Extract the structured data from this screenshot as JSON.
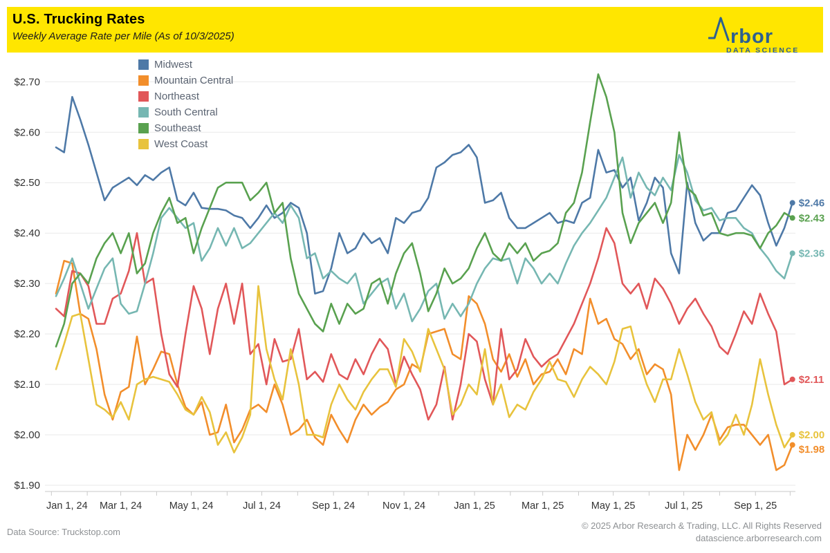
{
  "header": {
    "title": "U.S. Trucking Rates",
    "subtitle": "Weekly Average Rate per Mile (As of 10/3/2025)",
    "bar_color": "#FFE600",
    "logo": {
      "brand": "Arbor",
      "wordmark_suffix": "rbor",
      "tagline": "DATA SCIENCE",
      "color": "#2D6090"
    }
  },
  "footer": {
    "source": "Data Source: Truckstop.com",
    "copyright": "© 2025 Arbor Research & Trading, LLC. All Rights Reserved",
    "website": "datascience.arborresearch.com"
  },
  "chart_data": {
    "type": "line",
    "unit": "USD per mile, weekly average",
    "grid": "horizontal",
    "legend_position": "top-left",
    "y_axis": {
      "min": 1.9,
      "max": 2.7,
      "step": 0.1,
      "format": "$0.00"
    },
    "x_axis": {
      "start_date": "2024-01-05",
      "interval_days": 7,
      "points": 92,
      "tick_labels": [
        {
          "date": "2024-01-01",
          "label": "Jan 1, 24"
        },
        {
          "date": "2024-03-01",
          "label": "Mar 1, 24"
        },
        {
          "date": "2024-05-01",
          "label": "May 1, 24"
        },
        {
          "date": "2024-07-01",
          "label": "Jul 1, 24"
        },
        {
          "date": "2024-09-01",
          "label": "Sep 1, 24"
        },
        {
          "date": "2024-11-01",
          "label": "Nov 1, 24"
        },
        {
          "date": "2025-01-01",
          "label": "Jan 1, 25"
        },
        {
          "date": "2025-03-01",
          "label": "Mar 1, 25"
        },
        {
          "date": "2025-05-01",
          "label": "May 1, 25"
        },
        {
          "date": "2025-07-01",
          "label": "Jul 1, 25"
        },
        {
          "date": "2025-09-01",
          "label": "Sep 1, 25"
        }
      ]
    },
    "series": [
      {
        "name": "Midwest",
        "color": "#4E79A7",
        "end_label": "$2.46",
        "values": [
          2.57,
          2.56,
          2.67,
          2.625,
          2.575,
          2.52,
          2.465,
          2.49,
          2.5,
          2.51,
          2.495,
          2.515,
          2.505,
          2.52,
          2.53,
          2.465,
          2.455,
          2.48,
          2.45,
          2.448,
          2.448,
          2.445,
          2.435,
          2.43,
          2.41,
          2.43,
          2.455,
          2.43,
          2.44,
          2.46,
          2.45,
          2.4,
          2.28,
          2.285,
          2.33,
          2.4,
          2.36,
          2.37,
          2.4,
          2.38,
          2.39,
          2.36,
          2.43,
          2.42,
          2.44,
          2.445,
          2.47,
          2.53,
          2.54,
          2.555,
          2.56,
          2.575,
          2.55,
          2.46,
          2.465,
          2.48,
          2.43,
          2.41,
          2.41,
          2.42,
          2.43,
          2.44,
          2.42,
          2.425,
          2.42,
          2.46,
          2.47,
          2.565,
          2.52,
          2.525,
          2.49,
          2.51,
          2.425,
          2.46,
          2.51,
          2.49,
          2.36,
          2.32,
          2.5,
          2.42,
          2.385,
          2.4,
          2.4,
          2.44,
          2.445,
          2.47,
          2.495,
          2.475,
          2.42,
          2.375,
          2.41,
          2.46
        ]
      },
      {
        "name": "Mountain Central",
        "color": "#F28E2B",
        "end_label": "$1.98",
        "values": [
          2.28,
          2.345,
          2.34,
          2.24,
          2.23,
          2.17,
          2.08,
          2.03,
          2.085,
          2.095,
          2.195,
          2.1,
          2.13,
          2.165,
          2.16,
          2.1,
          2.055,
          2.04,
          2.065,
          2.0,
          2.005,
          2.06,
          1.985,
          2.01,
          2.05,
          2.06,
          2.045,
          2.1,
          2.06,
          2.0,
          2.01,
          2.03,
          1.995,
          1.98,
          2.04,
          2.01,
          1.985,
          2.03,
          2.06,
          2.04,
          2.055,
          2.065,
          2.09,
          2.1,
          2.14,
          2.13,
          2.2,
          2.205,
          2.21,
          2.16,
          2.15,
          2.275,
          2.26,
          2.22,
          2.15,
          2.125,
          2.16,
          2.115,
          2.15,
          2.1,
          2.12,
          2.125,
          2.15,
          2.12,
          2.17,
          2.16,
          2.27,
          2.22,
          2.23,
          2.19,
          2.18,
          2.15,
          2.17,
          2.12,
          2.14,
          2.13,
          2.08,
          1.93,
          2.0,
          1.97,
          2.0,
          2.04,
          1.99,
          2.015,
          2.02,
          2.02,
          2.0,
          1.98,
          2.0,
          1.93,
          1.94,
          1.98
        ]
      },
      {
        "name": "Northeast",
        "color": "#E15759",
        "end_label": "$2.11",
        "values": [
          2.25,
          2.235,
          2.325,
          2.32,
          2.295,
          2.22,
          2.22,
          2.27,
          2.28,
          2.325,
          2.4,
          2.3,
          2.31,
          2.2,
          2.12,
          2.095,
          2.2,
          2.295,
          2.25,
          2.16,
          2.25,
          2.3,
          2.22,
          2.3,
          2.16,
          2.18,
          2.1,
          2.19,
          2.145,
          2.15,
          2.21,
          2.11,
          2.125,
          2.105,
          2.16,
          2.12,
          2.11,
          2.15,
          2.12,
          2.16,
          2.19,
          2.17,
          2.1,
          2.155,
          2.12,
          2.09,
          2.03,
          2.06,
          2.135,
          2.03,
          2.1,
          2.2,
          2.185,
          2.11,
          2.06,
          2.21,
          2.11,
          2.13,
          2.19,
          2.155,
          2.135,
          2.15,
          2.16,
          2.19,
          2.22,
          2.26,
          2.3,
          2.35,
          2.41,
          2.38,
          2.3,
          2.28,
          2.3,
          2.25,
          2.31,
          2.29,
          2.26,
          2.22,
          2.25,
          2.27,
          2.24,
          2.215,
          2.175,
          2.16,
          2.2,
          2.245,
          2.22,
          2.28,
          2.24,
          2.205,
          2.1,
          2.11
        ]
      },
      {
        "name": "South Central",
        "color": "#76B7B2",
        "end_label": "$2.36",
        "values": [
          2.275,
          2.31,
          2.35,
          2.3,
          2.25,
          2.29,
          2.33,
          2.35,
          2.26,
          2.24,
          2.245,
          2.3,
          2.36,
          2.43,
          2.45,
          2.43,
          2.41,
          2.42,
          2.345,
          2.37,
          2.41,
          2.375,
          2.41,
          2.37,
          2.38,
          2.4,
          2.42,
          2.44,
          2.42,
          2.455,
          2.43,
          2.35,
          2.36,
          2.31,
          2.325,
          2.31,
          2.3,
          2.32,
          2.26,
          2.28,
          2.3,
          2.31,
          2.25,
          2.28,
          2.225,
          2.25,
          2.285,
          2.3,
          2.23,
          2.26,
          2.235,
          2.26,
          2.3,
          2.33,
          2.35,
          2.345,
          2.35,
          2.3,
          2.35,
          2.33,
          2.3,
          2.32,
          2.3,
          2.34,
          2.375,
          2.4,
          2.42,
          2.445,
          2.47,
          2.51,
          2.55,
          2.47,
          2.52,
          2.49,
          2.475,
          2.51,
          2.485,
          2.555,
          2.52,
          2.465,
          2.445,
          2.45,
          2.425,
          2.43,
          2.43,
          2.41,
          2.4,
          2.37,
          2.35,
          2.325,
          2.31,
          2.36
        ]
      },
      {
        "name": "Southeast",
        "color": "#59A14F",
        "end_label": "$2.43",
        "values": [
          2.175,
          2.22,
          2.3,
          2.32,
          2.3,
          2.35,
          2.38,
          2.4,
          2.36,
          2.4,
          2.32,
          2.34,
          2.4,
          2.44,
          2.47,
          2.42,
          2.43,
          2.36,
          2.41,
          2.45,
          2.49,
          2.5,
          2.5,
          2.5,
          2.465,
          2.48,
          2.5,
          2.44,
          2.46,
          2.35,
          2.28,
          2.25,
          2.22,
          2.205,
          2.26,
          2.22,
          2.26,
          2.24,
          2.25,
          2.3,
          2.31,
          2.26,
          2.32,
          2.36,
          2.38,
          2.32,
          2.245,
          2.28,
          2.33,
          2.3,
          2.31,
          2.33,
          2.37,
          2.4,
          2.36,
          2.345,
          2.38,
          2.36,
          2.38,
          2.345,
          2.36,
          2.365,
          2.38,
          2.44,
          2.46,
          2.52,
          2.62,
          2.715,
          2.67,
          2.6,
          2.44,
          2.38,
          2.42,
          2.44,
          2.46,
          2.42,
          2.46,
          2.6,
          2.49,
          2.475,
          2.435,
          2.44,
          2.4,
          2.395,
          2.4,
          2.4,
          2.395,
          2.37,
          2.4,
          2.415,
          2.44,
          2.43
        ]
      },
      {
        "name": "West Coast",
        "color": "#E8C33D",
        "end_label": "$2.00",
        "values": [
          2.13,
          2.18,
          2.235,
          2.24,
          2.15,
          2.06,
          2.05,
          2.035,
          2.065,
          2.03,
          2.1,
          2.11,
          2.115,
          2.11,
          2.105,
          2.08,
          2.05,
          2.04,
          2.075,
          2.045,
          1.98,
          2.005,
          1.965,
          1.995,
          2.04,
          2.295,
          2.17,
          2.11,
          2.07,
          2.17,
          2.1,
          2.0,
          2.0,
          1.995,
          2.06,
          2.1,
          2.07,
          2.05,
          2.085,
          2.11,
          2.13,
          2.13,
          2.095,
          2.19,
          2.165,
          2.125,
          2.21,
          2.17,
          2.13,
          2.04,
          2.06,
          2.1,
          2.08,
          2.17,
          2.06,
          2.1,
          2.035,
          2.06,
          2.05,
          2.085,
          2.11,
          2.145,
          2.11,
          2.105,
          2.075,
          2.11,
          2.135,
          2.12,
          2.1,
          2.145,
          2.21,
          2.215,
          2.15,
          2.1,
          2.065,
          2.11,
          2.11,
          2.17,
          2.12,
          2.065,
          2.03,
          2.045,
          1.98,
          2.0,
          2.04,
          2.0,
          2.06,
          2.15,
          2.08,
          2.02,
          1.975,
          2.0
        ]
      }
    ]
  }
}
